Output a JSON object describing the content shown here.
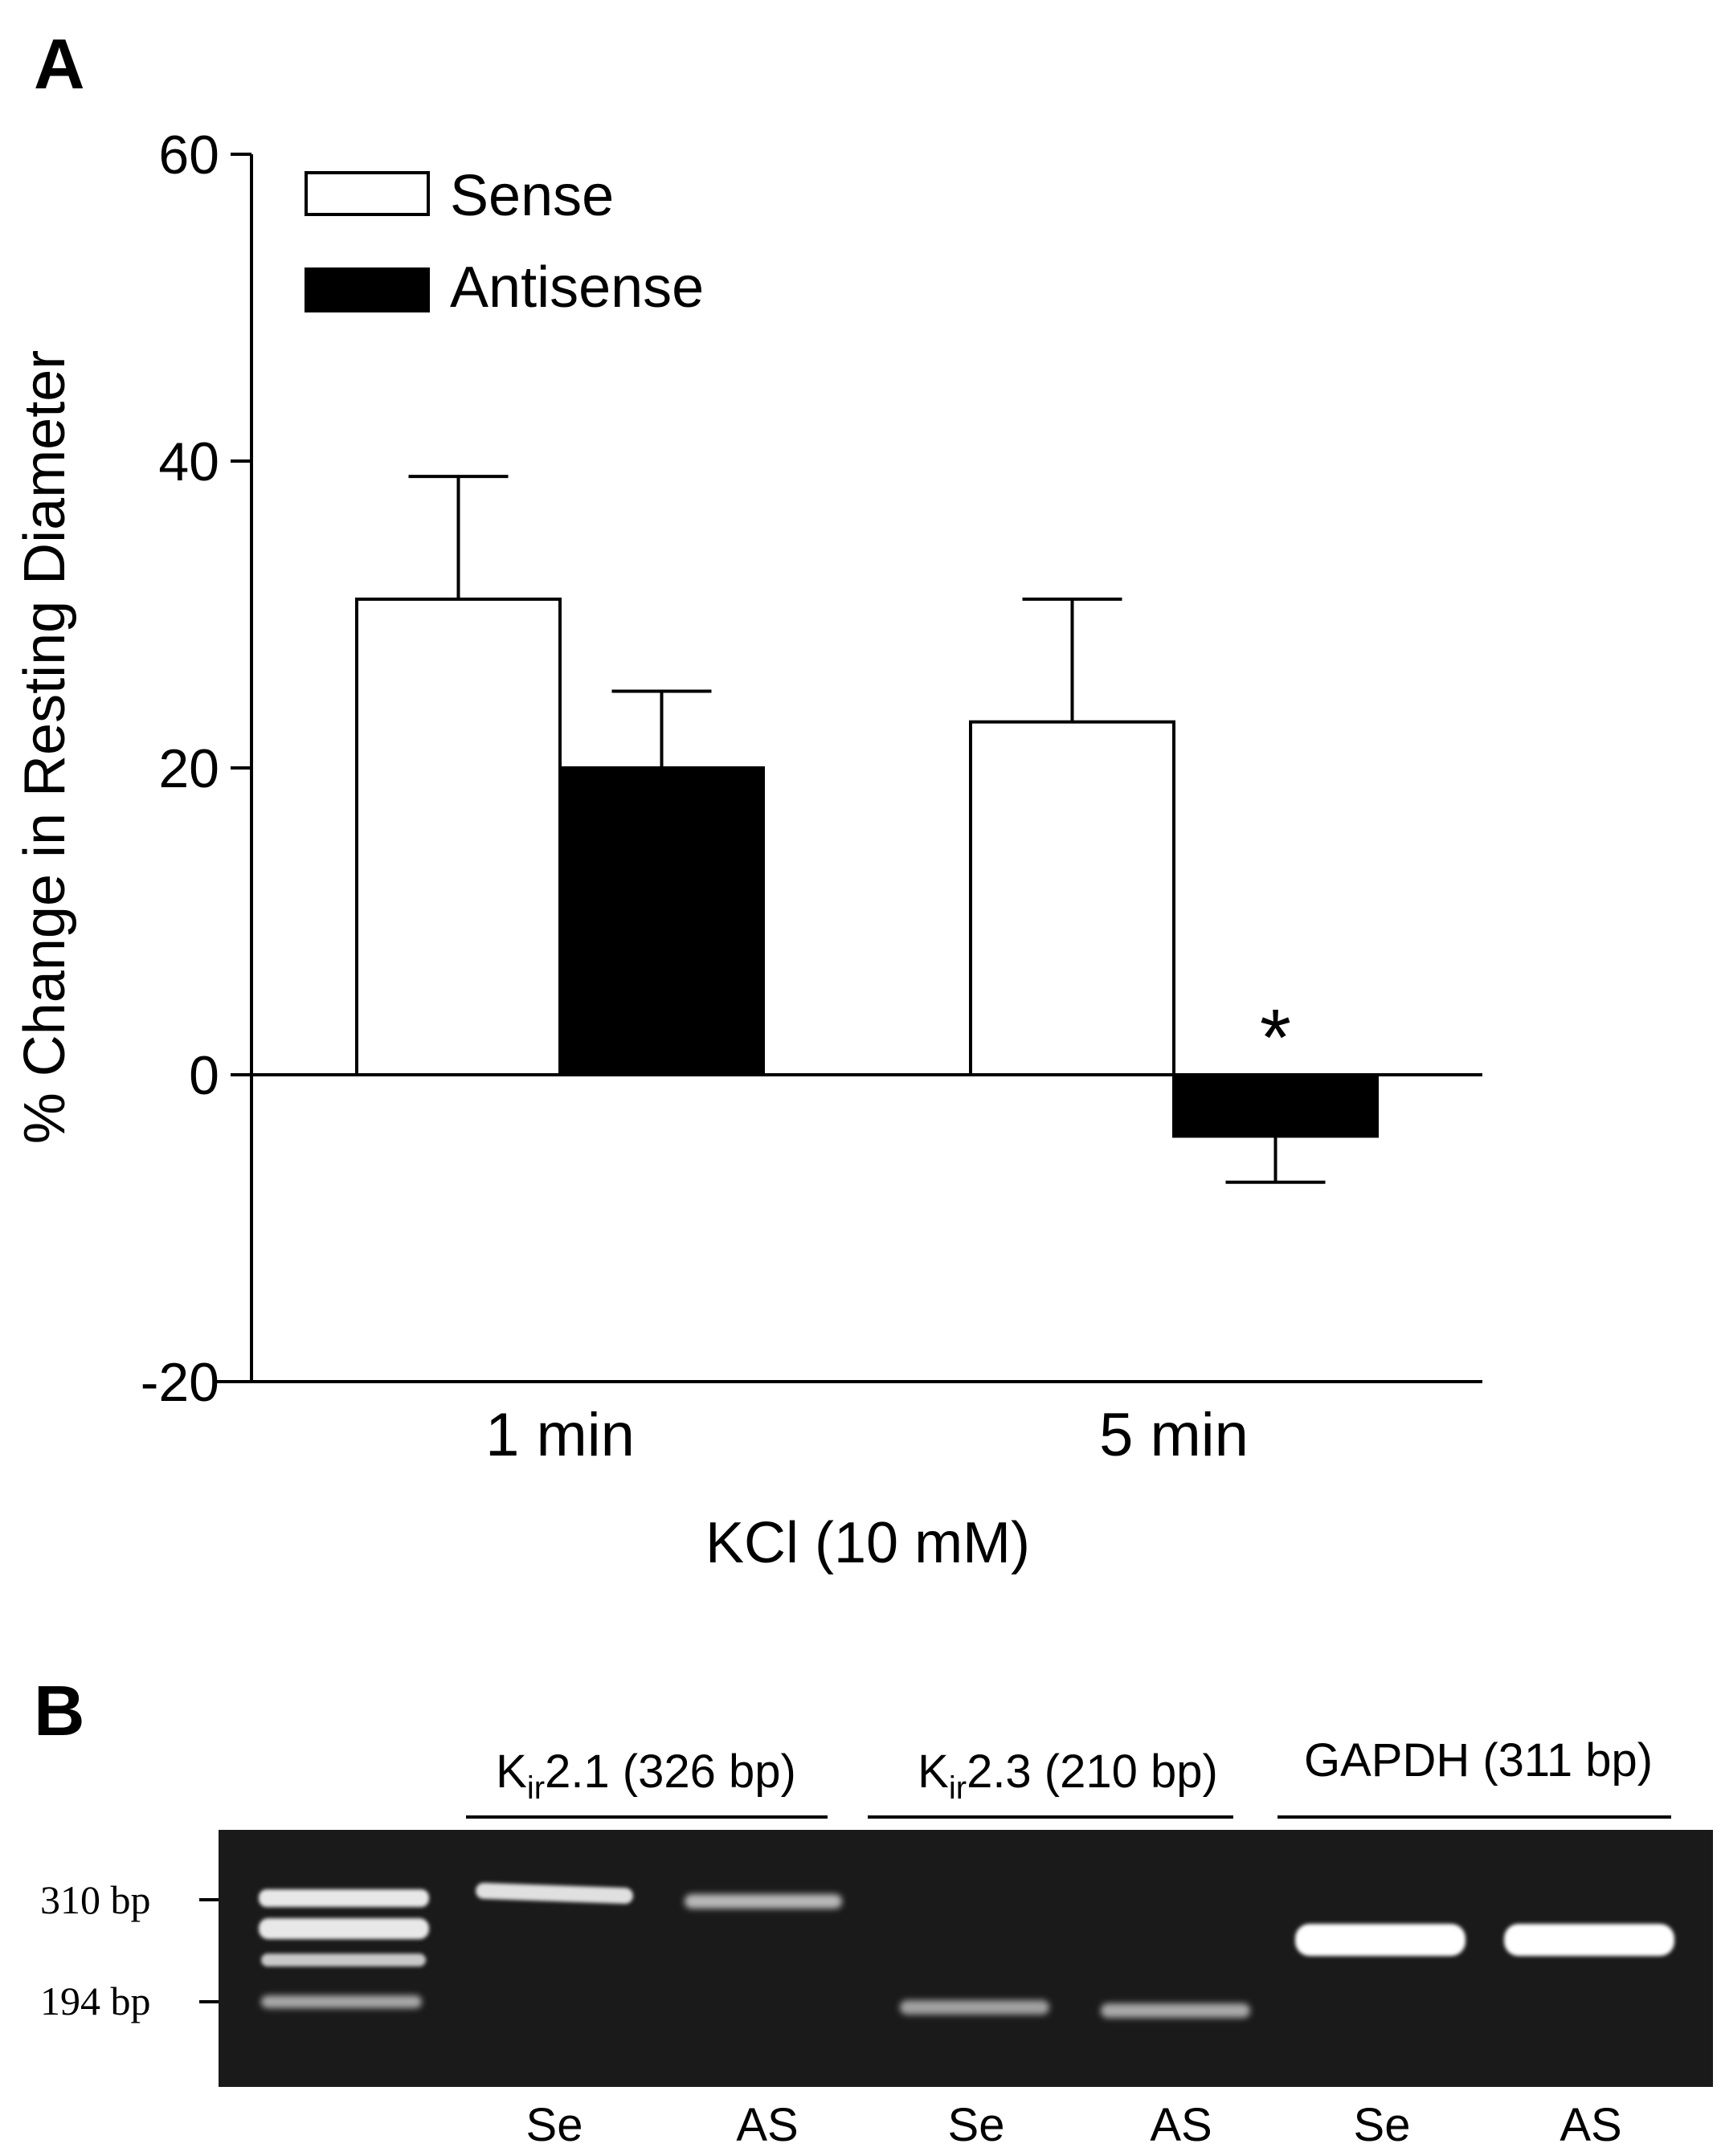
{
  "panel_a": {
    "label": "A",
    "ylabel": "% Change in Resting Diameter",
    "xlabel": "KCl (10 mM)",
    "legend": {
      "sense": "Sense",
      "antisense": "Antisense"
    },
    "significance_marker": "*"
  },
  "chart_data": {
    "type": "bar",
    "title": "",
    "categories": [
      "1 min",
      "5 min"
    ],
    "series": [
      {
        "name": "Sense",
        "values": [
          31,
          23
        ],
        "error": [
          8,
          8
        ],
        "color": "#ffffff"
      },
      {
        "name": "Antisense",
        "values": [
          20,
          -4
        ],
        "error": [
          5,
          3
        ],
        "color": "#000000"
      }
    ],
    "xlabel": "KCl (10 mM)",
    "ylabel": "% Change in Resting Diameter",
    "ylim": [
      -20,
      60
    ],
    "yticks": [
      -20,
      0,
      20,
      40,
      60
    ],
    "ytick_labels": [
      "-20",
      "0",
      "20",
      "40",
      "60"
    ],
    "grid": false,
    "legend_position": "top-left",
    "annotations": [
      {
        "text": "*",
        "category": "5 min",
        "series": "Antisense"
      }
    ]
  },
  "panel_b": {
    "label": "B",
    "groups": [
      {
        "prefix": "K",
        "sub": "ir",
        "suffix": "2.1 (326 bp)"
      },
      {
        "prefix": "K",
        "sub": "ir",
        "suffix": "2.3 (210 bp)"
      },
      {
        "prefix": "",
        "sub": "",
        "suffix": "GAPDH (311 bp)"
      }
    ],
    "markers": [
      "310 bp",
      "194 bp"
    ],
    "lanes": [
      "Se",
      "AS",
      "Se",
      "AS",
      "Se",
      "AS"
    ],
    "gel_background": "#1a1a1a"
  }
}
